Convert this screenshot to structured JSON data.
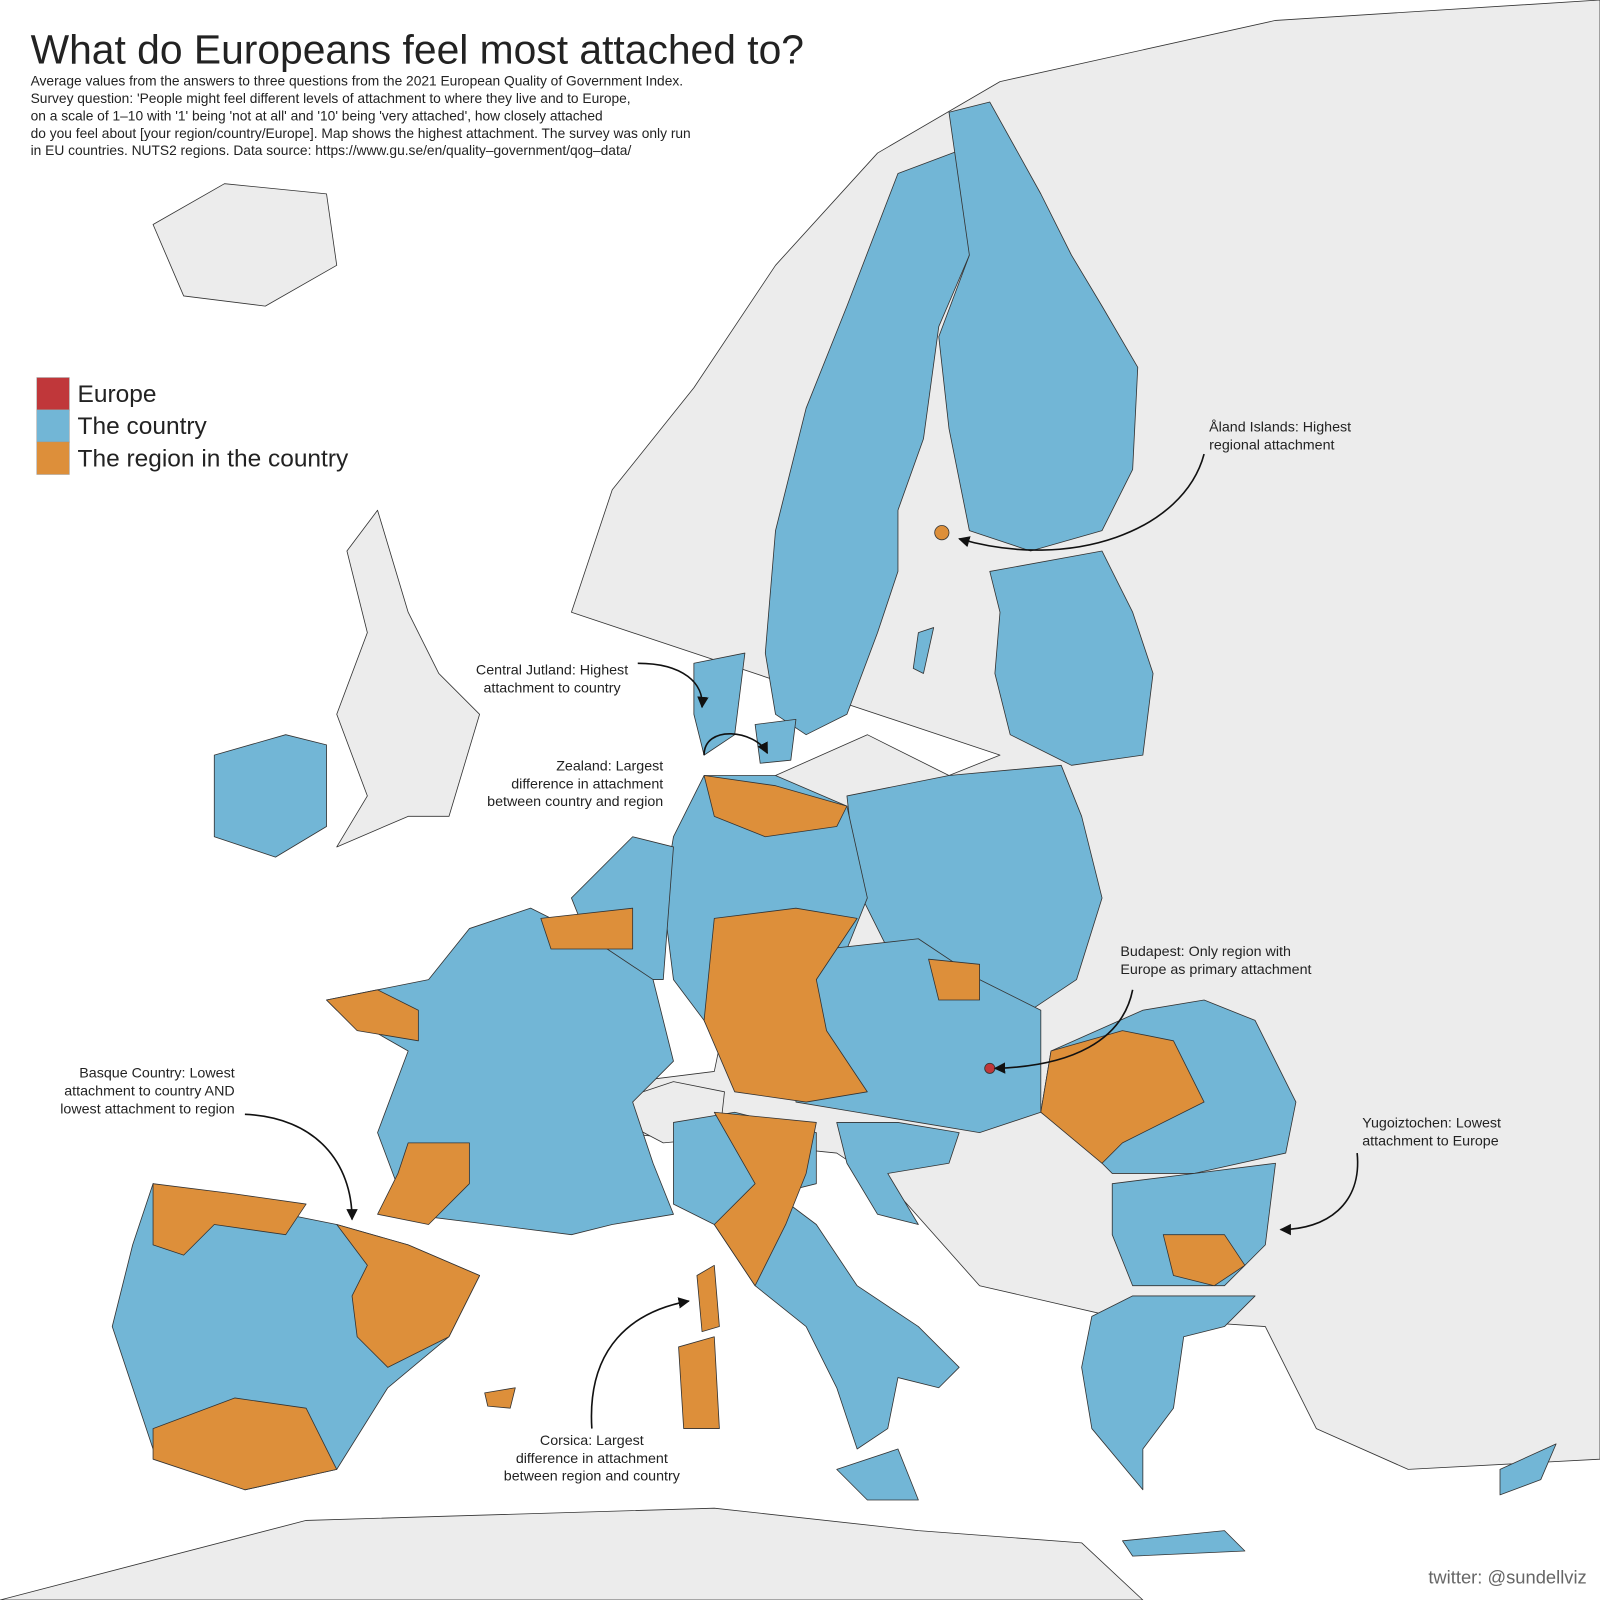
{
  "header": {
    "title": "What do Europeans feel most attached to?",
    "subtitle": [
      "Average values from the answers to three questions from the 2021 European Quality of Government Index.",
      "Survey question: 'People might feel different levels of attachment to where they live and to Europe,",
      "on a scale of 1–10 with '1' being 'not at all' and '10' being 'very attached', how closely attached",
      "do you feel about [your region/country/Europe]. Map shows the highest attachment. The survey was only run",
      "in EU countries. NUTS2 regions. Data source: https://www.gu.se/en/quality–government/qog–data/"
    ]
  },
  "legend": [
    {
      "label": "Europe",
      "color": "#c0373a"
    },
    {
      "label": "The country",
      "color": "#72b6d6"
    },
    {
      "label": "The region in the country",
      "color": "#dd8f3a"
    }
  ],
  "annotations": [
    {
      "lines": [
        "Åland Islands: Highest",
        "regional attachment"
      ]
    },
    {
      "lines": [
        "Central Jutland: Highest",
        "attachment to country"
      ]
    },
    {
      "lines": [
        "Zealand: Largest",
        "difference in attachment",
        "between country and region"
      ]
    },
    {
      "lines": [
        "Budapest: Only region with",
        "Europe as primary attachment"
      ]
    },
    {
      "lines": [
        "Basque Country: Lowest",
        "attachment to country AND",
        "lowest attachment to region"
      ]
    },
    {
      "lines": [
        "Yugoiztochen: Lowest",
        "attachment to Europe"
      ]
    },
    {
      "lines": [
        "Corsica: Largest",
        "difference in attachment",
        "between region and country"
      ]
    }
  ],
  "credit": "twitter: @sundellviz"
}
